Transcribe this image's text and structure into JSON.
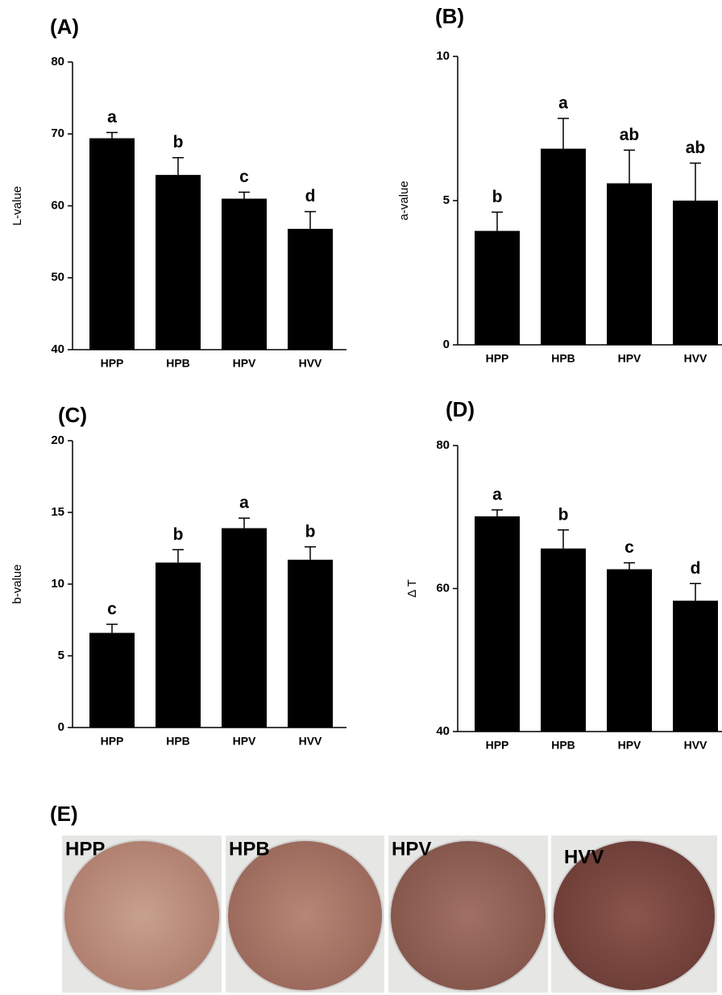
{
  "chart_data": [
    {
      "type": "bar",
      "title": "(A)",
      "y_label": "L-value",
      "categories": [
        "HPP",
        "HPB",
        "HPV",
        "HVV"
      ],
      "values": [
        69.4,
        64.3,
        61.0,
        56.8
      ],
      "errors": [
        0.8,
        2.4,
        0.9,
        2.4
      ],
      "annotations": [
        "a",
        "b",
        "c",
        "d"
      ],
      "color": "#000000",
      "ylim": [
        40,
        80
      ],
      "yticks": [
        40,
        50,
        60,
        70,
        80
      ]
    },
    {
      "type": "bar",
      "title": "(B)",
      "y_label": "a-value",
      "categories": [
        "HPP",
        "HPB",
        "HPV",
        "HVV"
      ],
      "values": [
        3.95,
        6.8,
        5.6,
        5.0
      ],
      "errors": [
        0.65,
        1.05,
        1.15,
        1.3
      ],
      "annotations": [
        "b",
        "a",
        "ab",
        "ab"
      ],
      "color": "#000000",
      "ylim": [
        0,
        10
      ],
      "yticks": [
        0,
        5,
        10
      ]
    },
    {
      "type": "bar",
      "title": "(C)",
      "y_label": "b-value",
      "categories": [
        "HPP",
        "HPB",
        "HPV",
        "HVV"
      ],
      "values": [
        6.6,
        11.5,
        13.9,
        11.7
      ],
      "errors": [
        0.6,
        0.9,
        0.7,
        0.9
      ],
      "annotations": [
        "c",
        "b",
        "a",
        "b"
      ],
      "color": "#000000",
      "ylim": [
        0,
        20
      ],
      "yticks": [
        0,
        5,
        10,
        15,
        20
      ]
    },
    {
      "type": "bar",
      "title": "(D)",
      "y_label": "Δ T",
      "categories": [
        "HPP",
        "HPB",
        "HPV",
        "HVV"
      ],
      "values": [
        70.1,
        65.6,
        62.7,
        58.3
      ],
      "errors": [
        0.9,
        2.6,
        0.9,
        2.4
      ],
      "annotations": [
        "a",
        "b",
        "c",
        "d"
      ],
      "color": "#000000",
      "ylim": [
        40,
        80
      ],
      "yticks": [
        40,
        60,
        80
      ]
    }
  ],
  "panel_e": {
    "title": "(E)",
    "labels": [
      "HPP",
      "HPB",
      "HPV",
      "HVV"
    ]
  }
}
